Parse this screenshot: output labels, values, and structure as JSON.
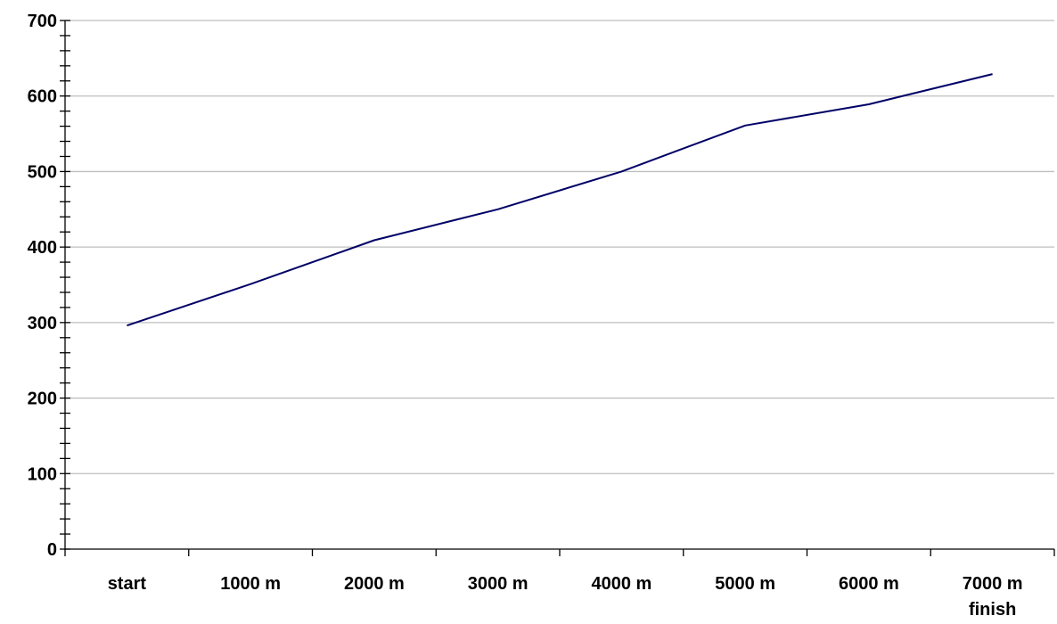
{
  "chart_data": {
    "type": "line",
    "title": "",
    "xlabel": "",
    "ylabel": "",
    "categories": [
      "start",
      "1000 m",
      "2000 m",
      "3000 m",
      "4000 m",
      "5000 m",
      "6000 m",
      "7000 m"
    ],
    "category_sublabels": [
      "",
      "",
      "",
      "",
      "",
      "",
      "",
      "finish"
    ],
    "series": [
      {
        "values": [
          296,
          351,
          409,
          450,
          500,
          561,
          589,
          629
        ]
      }
    ],
    "ylim": [
      0,
      700
    ],
    "yticks": [
      0,
      100,
      200,
      300,
      400,
      500,
      600,
      700
    ],
    "y_minor_step": 20,
    "grid": true,
    "legend": "none",
    "line_color": "#000066",
    "grid_color": "#bfbfbf",
    "axis_color": "#000000"
  }
}
